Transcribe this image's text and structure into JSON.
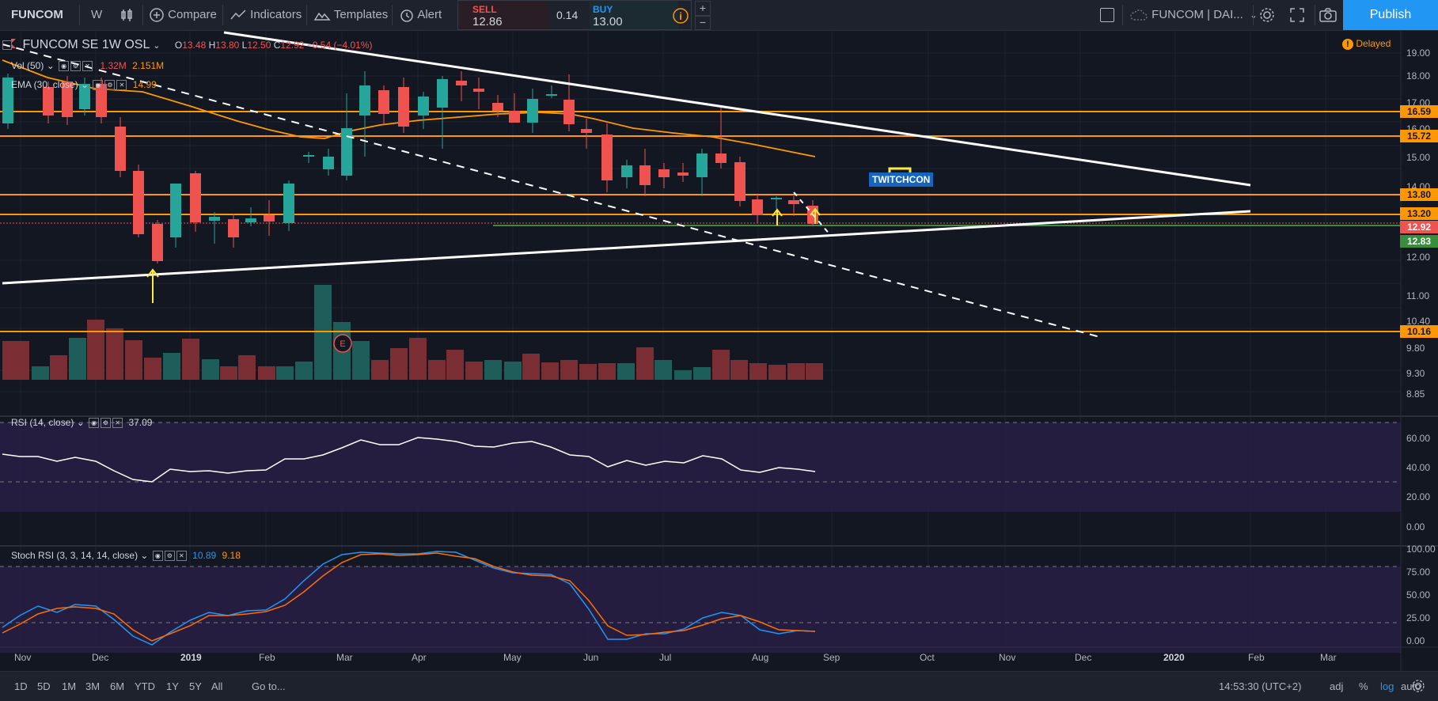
{
  "toolbar": {
    "symbol": "FUNCOM",
    "interval": "W",
    "compare": "Compare",
    "indicators": "Indicators",
    "templates": "Templates",
    "alert": "Alert",
    "sell_label": "SELL",
    "sell_price": "12.86",
    "spread": "0.14",
    "buy_label": "BUY",
    "buy_price": "13.00",
    "plus": "+",
    "minus": "−",
    "layout_name": "FUNCOM | DAI...",
    "publish": "Publish"
  },
  "legend": {
    "title": "FUNCOM SE  1W  OSL",
    "o_label": "O",
    "o": "13.48",
    "h_label": "H",
    "h": "13.80",
    "l_label": "L",
    "l": "12.50",
    "c_label": "C",
    "c": "12.92",
    "change": "−0.54 (−4.01%)",
    "vol_label": "Vol (50)",
    "vol_1": "1.32M",
    "vol_2": "2.151M",
    "ema_label": "EMA (30, close)",
    "ema_value": "14.99",
    "delayed": "Delayed"
  },
  "rsi": {
    "label": "RSI (14, close)",
    "value": "37.09"
  },
  "stoch": {
    "label": "Stoch RSI (3, 3, 14, 14, close)",
    "k": "10.89",
    "d": "9.18"
  },
  "annotation": {
    "text": "TWITCHCON",
    "earnings": "E"
  },
  "price_axis": [
    "19.00",
    "18.00",
    "17.00",
    "16.00",
    "15.00",
    "14.00",
    "12.00",
    "11.00",
    "10.40",
    "9.80",
    "9.30",
    "8.85"
  ],
  "price_badges": [
    {
      "text": "16.59",
      "color": "#ff9800"
    },
    {
      "text": "15.72",
      "color": "#ff9800"
    },
    {
      "text": "13.80",
      "color": "#ff9800"
    },
    {
      "text": "13.20",
      "color": "#ff9800"
    },
    {
      "text": "12.92",
      "color": "#ef5350"
    },
    {
      "text": "12.83",
      "color": "#388e3c"
    },
    {
      "text": "10.16",
      "color": "#ff9800"
    }
  ],
  "rsi_axis": [
    "60.00",
    "40.00",
    "20.00",
    "0.00"
  ],
  "stoch_axis": [
    "100.00",
    "75.00",
    "50.00",
    "25.00",
    "0.00"
  ],
  "time_axis": [
    "Nov",
    "Dec",
    "2019",
    "Feb",
    "Mar",
    "Apr",
    "May",
    "Jun",
    "Jul",
    "Aug",
    "Sep",
    "Oct",
    "Nov",
    "Dec",
    "2020",
    "Feb",
    "Mar"
  ],
  "bottom": {
    "ranges": [
      "1D",
      "5D",
      "1M",
      "3M",
      "6M",
      "YTD",
      "1Y",
      "5Y",
      "All"
    ],
    "goto": "Go to...",
    "time": "14:53:30 (UTC+2)",
    "adj": "adj",
    "pct": "%",
    "log": "log",
    "auto": "auto"
  },
  "colors": {
    "up": "#26a69a",
    "down": "#ef5350",
    "orange": "#ff9800",
    "accent": "#2196f3"
  }
}
